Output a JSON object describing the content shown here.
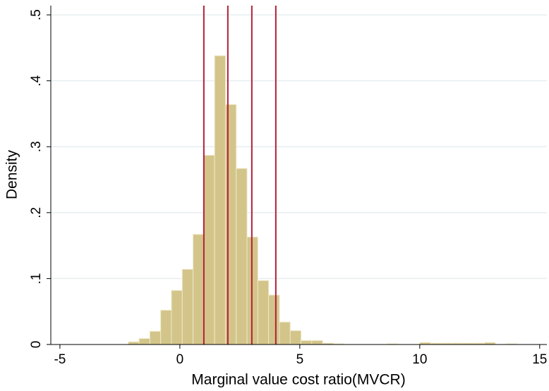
{
  "chart_data": {
    "type": "histogram",
    "x_label": "Marginal value cost ratio(MVCR)",
    "y_label": "Density",
    "bins": [
      -2.15,
      -1.7,
      -1.25,
      -0.8,
      -0.35,
      0.1,
      0.55,
      1.0,
      1.45,
      1.9,
      2.35,
      2.8,
      3.25,
      3.7,
      4.15,
      4.6,
      5.05,
      5.5,
      5.95,
      6.4,
      6.85,
      7.3,
      7.75,
      8.2,
      8.65,
      9.1,
      9.55,
      10.0,
      10.45,
      10.9,
      11.35,
      11.8,
      12.25,
      12.7,
      13.15,
      13.6,
      14.05
    ],
    "values": [
      0.004,
      0.009,
      0.02,
      0.052,
      0.082,
      0.114,
      0.167,
      0.287,
      0.438,
      0.364,
      0.267,
      0.163,
      0.097,
      0.075,
      0.034,
      0.021,
      0.006,
      0.006,
      0.002,
      0.001,
      0,
      0,
      0,
      0,
      0.001,
      0,
      0,
      0.003,
      0.002,
      0.002,
      0.002,
      0.002,
      0.002,
      0.003,
      0,
      0.001
    ],
    "color": "#d3c58a",
    "vlines": [
      1,
      2,
      3,
      4
    ],
    "vline_color": "#b22038",
    "xlim": [
      -5.38,
      15.3
    ],
    "ylim": [
      0,
      0.514
    ],
    "xticks": [
      -5,
      0,
      5,
      10,
      15
    ],
    "yticks": [
      0,
      {
        "value": 0.1,
        "label": ".1"
      },
      {
        "value": 0.2,
        "label": ".2"
      },
      {
        "value": 0.3,
        "label": ".3"
      },
      {
        "value": 0.4,
        "label": ".4"
      },
      {
        "value": 0.5,
        "label": ".5"
      }
    ],
    "grid": true
  }
}
